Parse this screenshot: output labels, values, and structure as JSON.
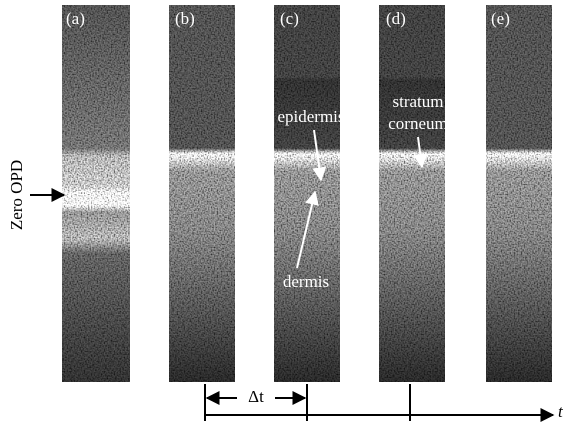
{
  "panels": [
    "(a)",
    "(b)",
    "(c)",
    "(d)",
    "(e)"
  ],
  "annotations": {
    "zero_opd": "Zero OPD",
    "epidermis": "epidermis",
    "dermis": "dermis",
    "stratum_corneum": [
      "stratum",
      "corneum"
    ],
    "delta_t": "Δt",
    "time_axis": "t"
  }
}
